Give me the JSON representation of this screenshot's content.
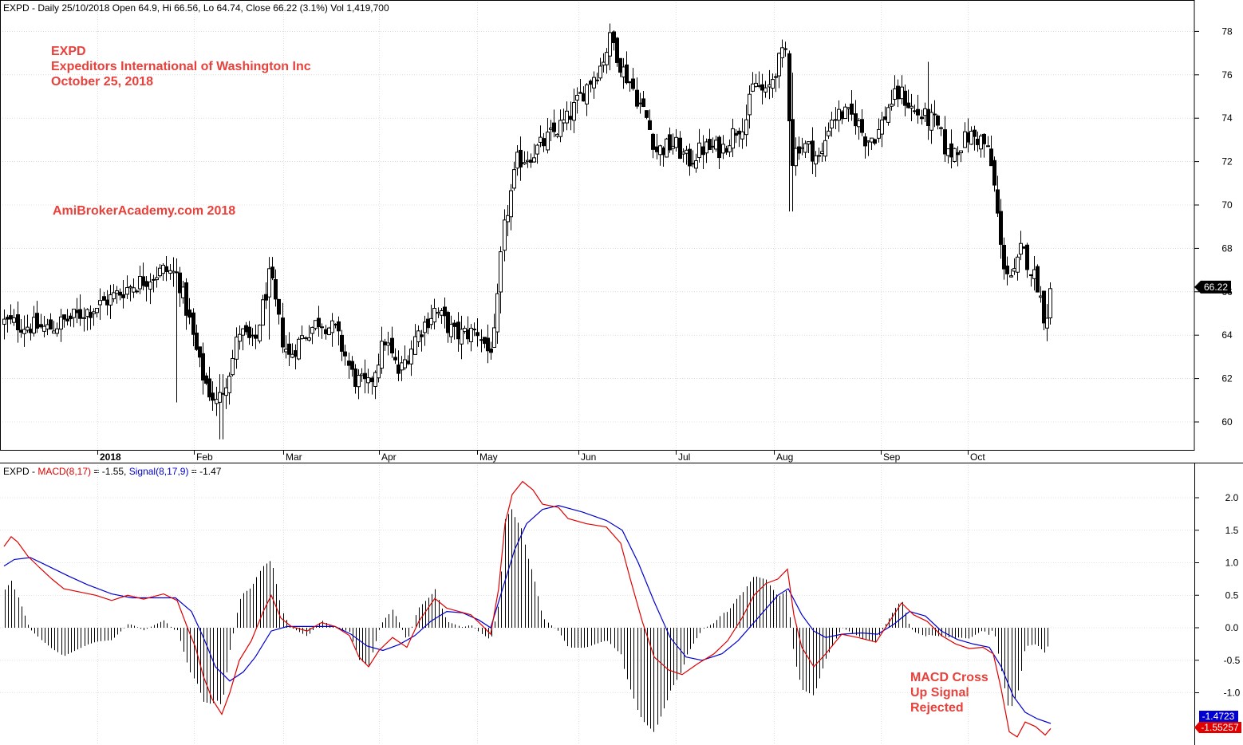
{
  "header": {
    "price": "EXPD - Daily 25/10/2018 Open 64.9, Hi 66.56, Lo 64.74, Close 66.22 (3.1%) Vol 1,419,700",
    "macd_prefix": "EXPD - ",
    "macd_name": "MACD(8,17)",
    "macd_value": " = -1.55, ",
    "signal_name": "Signal(8,17,9)",
    "signal_value": " = -1.47"
  },
  "annotations": {
    "ticker": "EXPD",
    "company": "Expeditors International of Washington Inc",
    "date": "October 25, 2018",
    "watermark": "AmiBrokerAcademy.com  2018",
    "macd_note_1": "MACD Cross",
    "macd_note_2": "Up Signal",
    "macd_note_3": "Rejected"
  },
  "price_axis": {
    "ticks": [
      "60",
      "62",
      "64",
      "66",
      "68",
      "70",
      "72",
      "74",
      "76",
      "78"
    ],
    "last_close_label": "66.22"
  },
  "macd_axis": {
    "ticks": [
      "2.0",
      "1.5",
      "1.0",
      "0.5",
      "0.0",
      "-0.5",
      "-1.0"
    ],
    "signal_label": "-1.4723",
    "macd_label": "-1.55257"
  },
  "months": [
    "2018",
    "Feb",
    "Mar",
    "Apr",
    "May",
    "Jun",
    "Jul",
    "Aug",
    "Sep",
    "Oct"
  ],
  "colors": {
    "macd": "#e00000",
    "signal": "#0000d0",
    "candle": "#000000",
    "annotation": "#e8403a",
    "grid": "#c8c8c8"
  },
  "chart_data": [
    {
      "type": "candlestick",
      "symbol": "EXPD",
      "ylim": [
        59,
        79
      ],
      "monthly_approximation": [
        {
          "month": "Jan",
          "open": 64.5,
          "high": 67.5,
          "low": 63.8,
          "close": 66.8
        },
        {
          "month": "Feb",
          "open": 66.8,
          "high": 67.2,
          "low": 59.1,
          "close": 63.0
        },
        {
          "month": "Mar",
          "open": 63.0,
          "high": 67.6,
          "low": 62.0,
          "close": 64.0
        },
        {
          "month": "Apr",
          "open": 64.0,
          "high": 65.0,
          "low": 60.8,
          "close": 63.8
        },
        {
          "month": "May",
          "open": 63.8,
          "high": 74.2,
          "low": 61.7,
          "close": 73.4
        },
        {
          "month": "Jun",
          "open": 73.4,
          "high": 78.2,
          "low": 73.0,
          "close": 74.0
        },
        {
          "month": "Jul",
          "open": 74.0,
          "high": 77.8,
          "low": 71.1,
          "close": 76.0
        },
        {
          "month": "Aug",
          "open": 76.0,
          "high": 76.0,
          "low": 69.7,
          "close": 73.0
        },
        {
          "month": "Sep",
          "open": 73.0,
          "high": 76.6,
          "low": 72.0,
          "close": 73.0
        },
        {
          "month": "Oct",
          "open": 73.0,
          "high": 74.0,
          "low": 64.2,
          "close": 66.22
        }
      ],
      "last": {
        "date": "25/10/2018",
        "open": 64.9,
        "high": 66.56,
        "low": 64.74,
        "close": 66.22,
        "volume": 1419700
      }
    },
    {
      "type": "line",
      "indicator": "MACD(8,17) / Signal(8,17,9) with histogram",
      "ylim": [
        -1.8,
        2.4
      ],
      "x": [
        "Jan",
        "Feb",
        "Mar",
        "Apr",
        "May",
        "Jun",
        "Jul",
        "Aug",
        "Sep",
        "Oct"
      ],
      "series": [
        {
          "name": "MACD(8,17)",
          "values": [
            0.8,
            -0.5,
            0.1,
            -0.3,
            1.5,
            1.2,
            -0.4,
            0.3,
            0.2,
            -1.55
          ]
        },
        {
          "name": "Signal(8,17,9)",
          "values": [
            0.7,
            -0.3,
            0.05,
            -0.2,
            1.2,
            1.5,
            -0.3,
            0.1,
            0.25,
            -1.47
          ]
        }
      ],
      "last": {
        "macd": -1.55,
        "signal": -1.47
      }
    }
  ]
}
